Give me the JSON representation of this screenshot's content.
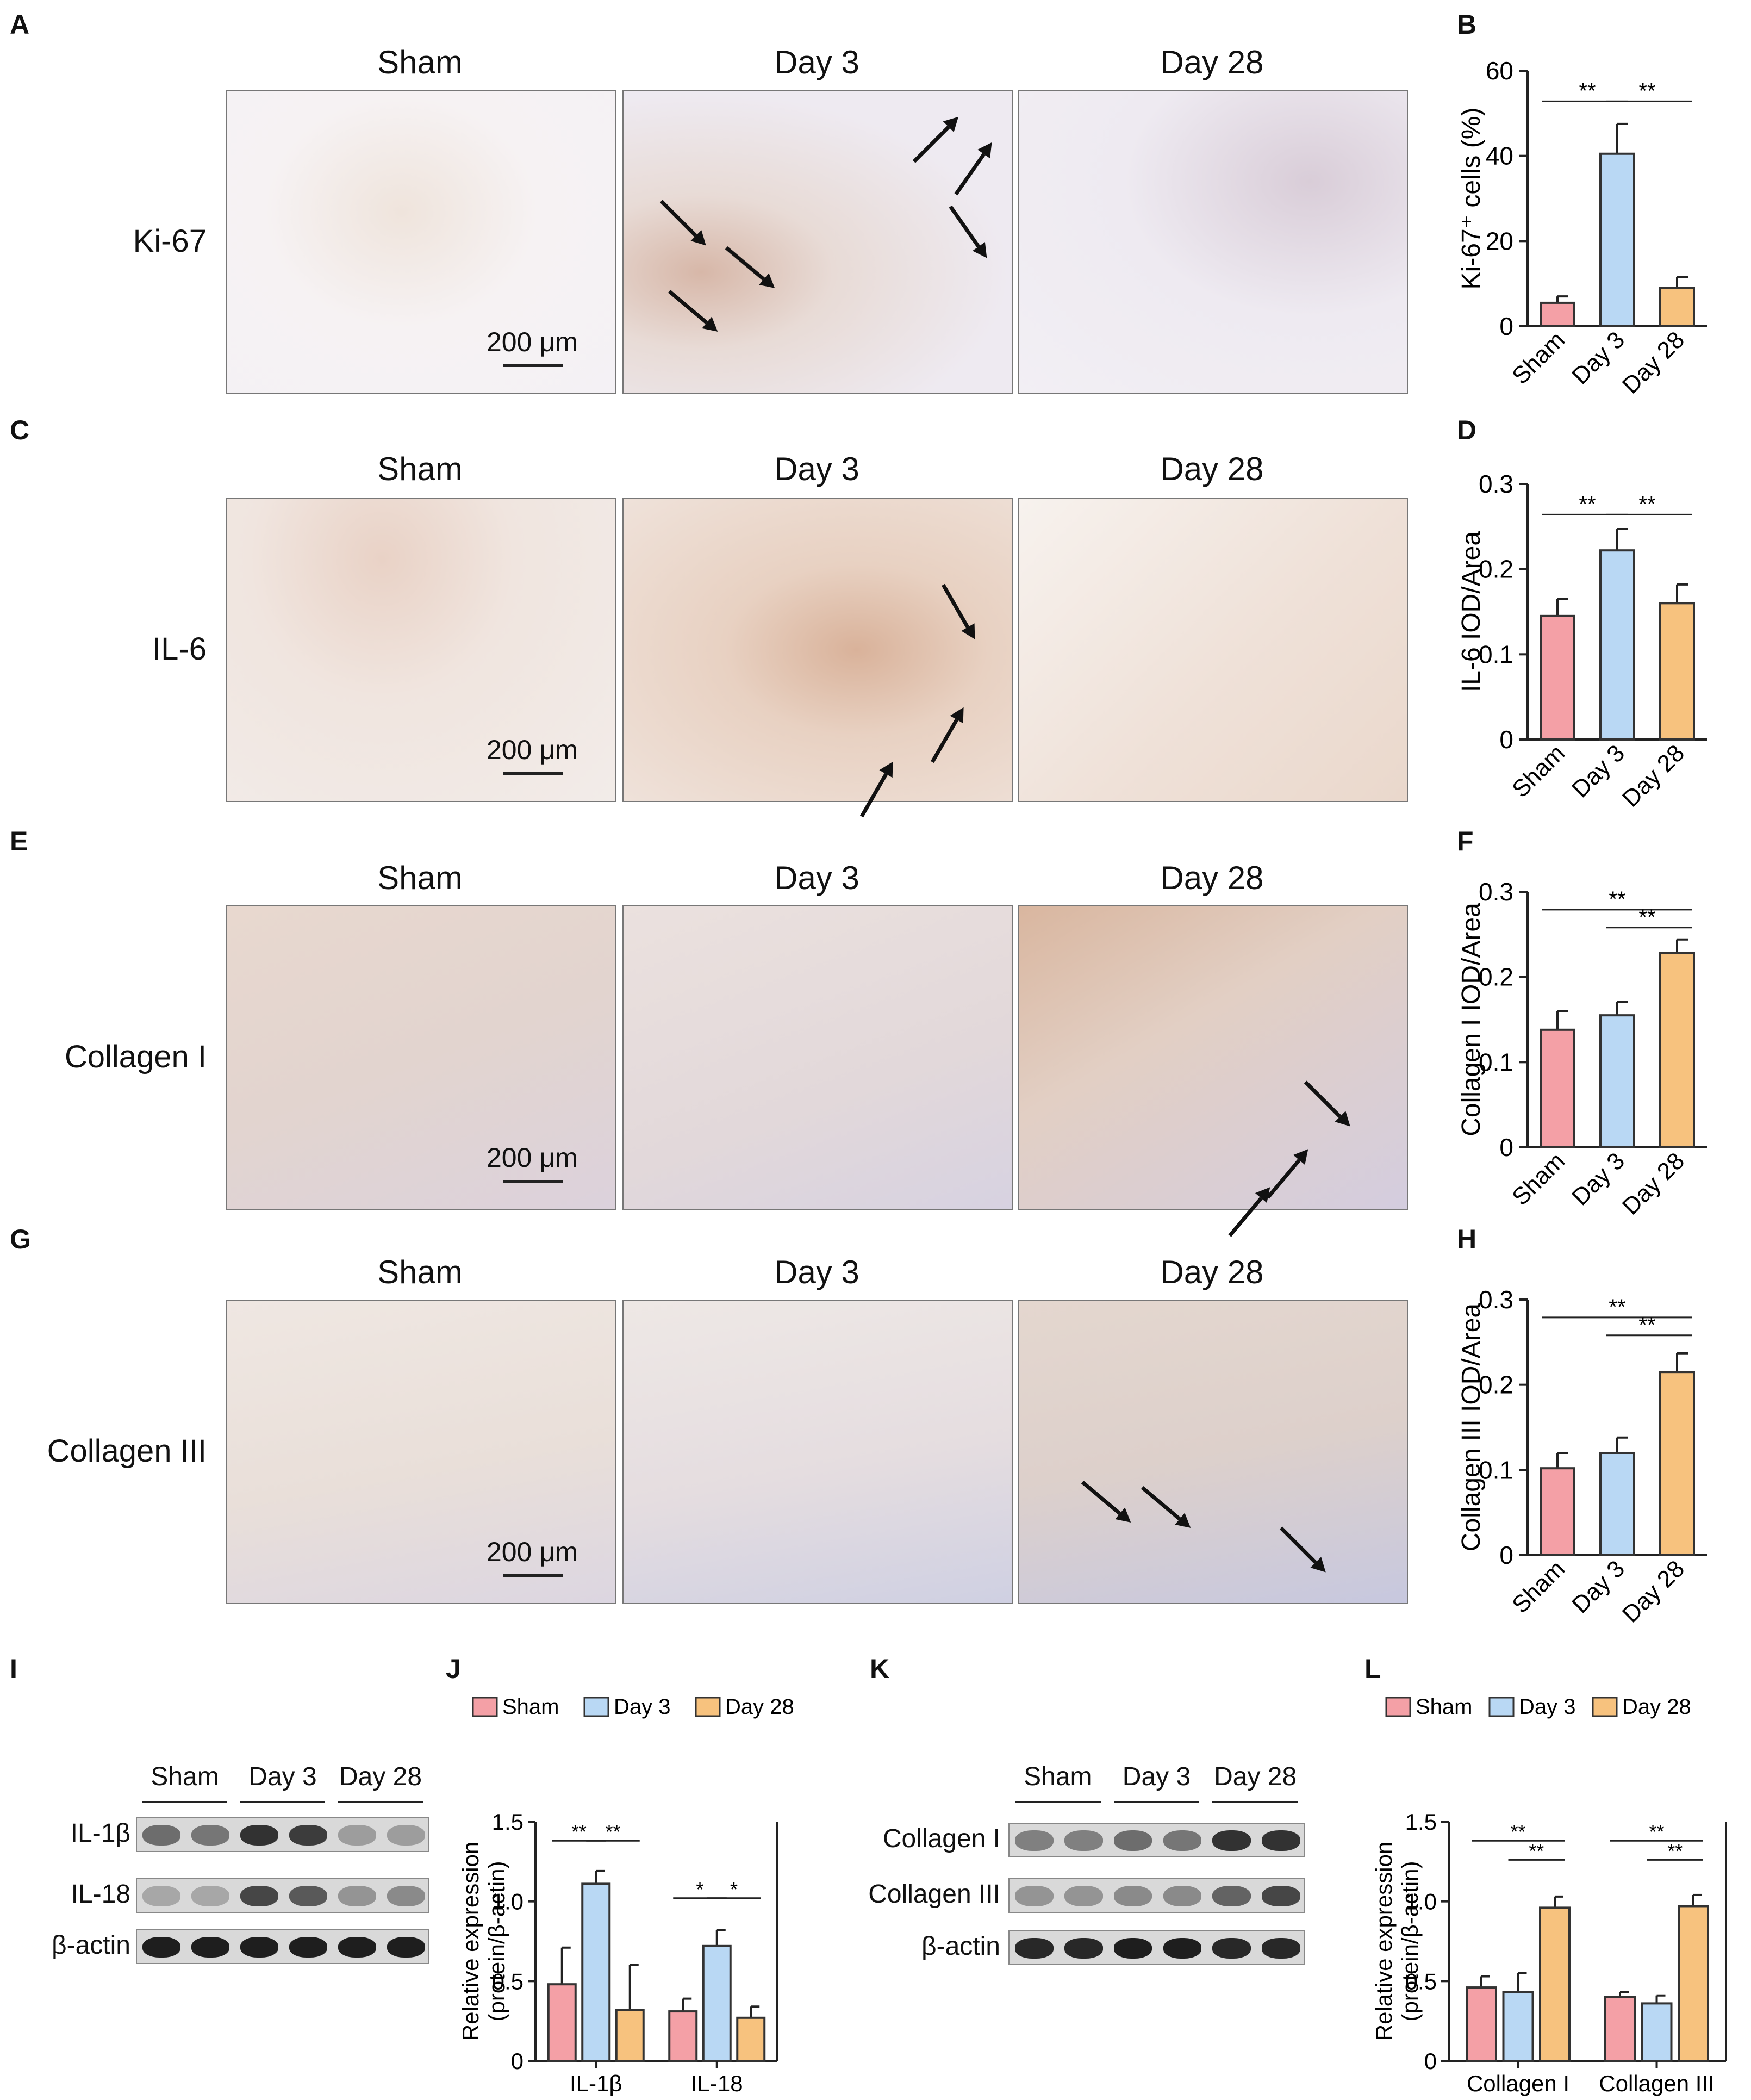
{
  "panel_letters": [
    "A",
    "B",
    "C",
    "D",
    "E",
    "F",
    "G",
    "H",
    "I",
    "J",
    "K",
    "L"
  ],
  "group_titles": [
    "Sham",
    "Day 3",
    "Day 28"
  ],
  "row_labels": [
    "Ki-67",
    "IL-6",
    "Collagen I",
    "Collagen III"
  ],
  "scale_bar": "200 μm",
  "colors": {
    "sham": "#f4a0a6",
    "day3": "#b9d8f4",
    "day28": "#f7c27e",
    "stain_brown": "#c9a58f",
    "stain_blue": "#b3b7d8"
  },
  "blot_I": {
    "groups": [
      "Sham",
      "Day 3",
      "Day 28"
    ],
    "rows": [
      "IL-1β",
      "IL-18",
      "β-actin"
    ]
  },
  "blot_K": {
    "groups": [
      "Sham",
      "Day 3",
      "Day 28"
    ],
    "rows": [
      "Collagen I",
      "Collagen III",
      "β-actin"
    ]
  },
  "chart_data": [
    {
      "panel": "B",
      "type": "bar",
      "categories": [
        "Sham",
        "Day 3",
        "Day 28"
      ],
      "values": [
        5.5,
        40.5,
        9
      ],
      "errors": [
        1.5,
        7,
        2.5
      ],
      "ylabel": "Ki-67⁺ cells (%)",
      "ylim": [
        0,
        60
      ],
      "yticks": [
        "0",
        "20",
        "40",
        "60"
      ],
      "significance": [
        {
          "from": 0,
          "to": 1,
          "label": "**"
        },
        {
          "from": 1,
          "to": 2,
          "label": "**"
        }
      ]
    },
    {
      "panel": "D",
      "type": "bar",
      "categories": [
        "Sham",
        "Day 3",
        "Day 28"
      ],
      "values": [
        0.145,
        0.222,
        0.16
      ],
      "errors": [
        0.02,
        0.025,
        0.022
      ],
      "ylabel": "IL-6 IOD/Area",
      "ylim": [
        0,
        0.3
      ],
      "yticks": [
        "0",
        "0.1",
        "0.2",
        "0.3"
      ],
      "significance": [
        {
          "from": 0,
          "to": 1,
          "label": "**"
        },
        {
          "from": 1,
          "to": 2,
          "label": "**"
        }
      ]
    },
    {
      "panel": "F",
      "type": "bar",
      "categories": [
        "Sham",
        "Day 3",
        "Day 28"
      ],
      "values": [
        0.138,
        0.155,
        0.228
      ],
      "errors": [
        0.022,
        0.016,
        0.016
      ],
      "ylabel": "Collagen I IOD/Area",
      "ylim": [
        0,
        0.3
      ],
      "yticks": [
        "0",
        "0.1",
        "0.2",
        "0.3"
      ],
      "significance": [
        {
          "from": 0,
          "to": 2,
          "label": "**"
        },
        {
          "from": 1,
          "to": 2,
          "label": "**"
        }
      ]
    },
    {
      "panel": "H",
      "type": "bar",
      "categories": [
        "Sham",
        "Day 3",
        "Day 28"
      ],
      "values": [
        0.102,
        0.12,
        0.215
      ],
      "errors": [
        0.018,
        0.018,
        0.022
      ],
      "ylabel": "Collagen III IOD/Area",
      "ylim": [
        0,
        0.3
      ],
      "yticks": [
        "0",
        "0.1",
        "0.2",
        "0.3"
      ],
      "significance": [
        {
          "from": 0,
          "to": 2,
          "label": "**"
        },
        {
          "from": 1,
          "to": 2,
          "label": "**"
        }
      ]
    },
    {
      "panel": "J",
      "type": "bar",
      "categories": [
        "IL-1β",
        "IL-18"
      ],
      "series": [
        {
          "name": "Sham",
          "values": [
            0.48,
            0.31
          ],
          "errors": [
            0.23,
            0.08
          ]
        },
        {
          "name": "Day 3",
          "values": [
            1.11,
            0.72
          ],
          "errors": [
            0.08,
            0.1
          ]
        },
        {
          "name": "Day 28",
          "values": [
            0.32,
            0.27
          ],
          "errors": [
            0.28,
            0.07
          ]
        }
      ],
      "ylabel": "Relative expression (protein/β-actin)",
      "ylim": [
        0,
        1.5
      ],
      "yticks": [
        "0",
        "0.5",
        "1.0",
        "1.5"
      ],
      "legend": "top",
      "significance": [
        {
          "cat": 0,
          "from": 0,
          "to": 1,
          "label": "**"
        },
        {
          "cat": 0,
          "from": 1,
          "to": 2,
          "label": "**"
        },
        {
          "cat": 1,
          "from": 0,
          "to": 1,
          "label": "*"
        },
        {
          "cat": 1,
          "from": 1,
          "to": 2,
          "label": "*"
        }
      ]
    },
    {
      "panel": "L",
      "type": "bar",
      "categories": [
        "Collagen I",
        "Collagen III"
      ],
      "series": [
        {
          "name": "Sham",
          "values": [
            0.46,
            0.4
          ],
          "errors": [
            0.07,
            0.03
          ]
        },
        {
          "name": "Day 3",
          "values": [
            0.43,
            0.36
          ],
          "errors": [
            0.12,
            0.05
          ]
        },
        {
          "name": "Day 28",
          "values": [
            0.96,
            0.97
          ],
          "errors": [
            0.07,
            0.07
          ]
        }
      ],
      "ylabel": "Relative expression (protein/β-actin)",
      "ylim": [
        0,
        1.5
      ],
      "yticks": [
        "0",
        "0.5",
        "1.0",
        "1.5"
      ],
      "legend": "top",
      "significance": [
        {
          "cat": 0,
          "from": 0,
          "to": 2,
          "label": "**"
        },
        {
          "cat": 0,
          "from": 1,
          "to": 2,
          "label": "**"
        },
        {
          "cat": 1,
          "from": 0,
          "to": 2,
          "label": "**"
        },
        {
          "cat": 1,
          "from": 1,
          "to": 2,
          "label": "**"
        }
      ]
    }
  ]
}
